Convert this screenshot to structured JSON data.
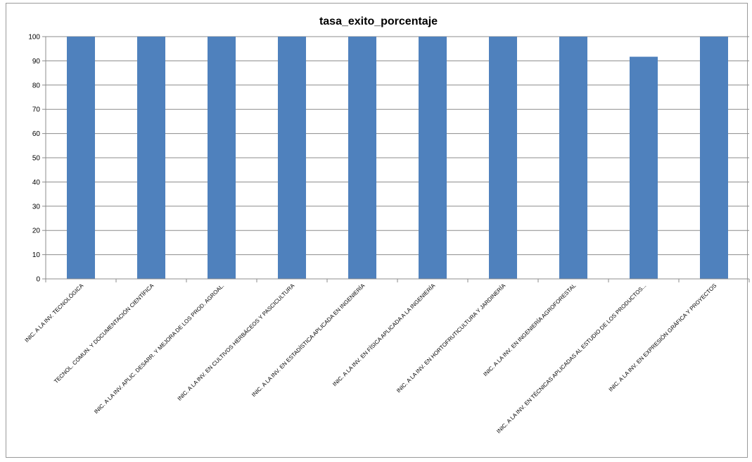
{
  "chart_data": {
    "type": "bar",
    "title": "tasa_exito_porcentaje",
    "xlabel": "",
    "ylabel": "",
    "ylim": [
      0,
      100
    ],
    "yticks": [
      0,
      10,
      20,
      30,
      40,
      50,
      60,
      70,
      80,
      90,
      100
    ],
    "grid": true,
    "legend": "none",
    "bar_color": "#4F81BD",
    "categories": [
      "INIC. A LA INV. TECNOLÓGICA",
      "TECNOL. COMUN. Y DOCUMENTACIÓN CIENTÍFICA",
      "INIC. A LA INV. APLIC. DESARR. Y MEJORA DE LOS PROD. AGROAL.",
      "INIC. A LA INV. EN CULTIVOS HERBÁCEOS Y PASCICULTURA",
      "INIC. A LA INV. EN ESTADÍSTICA APLICADA EN INGENIERÍA",
      "INIC. A LA INV. EN FÍSICA APLICADA A LA INGENIERÍA",
      "INIC. A LA INV. EN HORTOFRUTICULTURA Y JARDINERÍA",
      "INIC. A LA INV. EN INGENIERÍA AGROFORESTAL",
      "INIC. A LA INV. EN TÉCNICAS APLICADAS AL ESTUDIO DE LOS PRODUCTOS...",
      "INIC. A LA INV. EN EXPRESIÓN GRÁFICA Y PROYECTOS"
    ],
    "values": [
      100,
      100,
      100,
      100,
      100,
      100,
      100,
      100,
      91.7,
      100
    ]
  }
}
